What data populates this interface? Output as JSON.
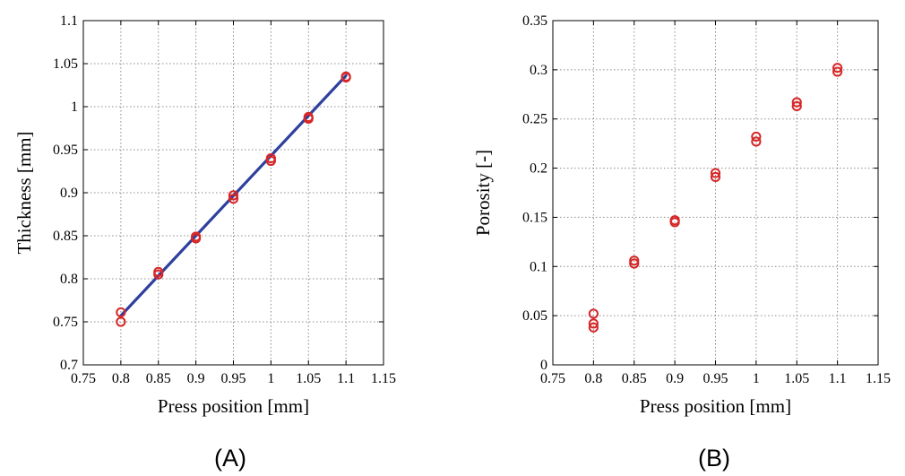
{
  "chart_data": [
    {
      "type": "scatter",
      "panel_label": "(A)",
      "title": "",
      "xlabel": "Press position [mm]",
      "ylabel": "Thickness [mm]",
      "xlim": [
        0.75,
        1.15
      ],
      "ylim": [
        0.7,
        1.1
      ],
      "xticks": [
        "0.75",
        "0.8",
        "0.85",
        "0.9",
        "0.95",
        "1",
        "1.05",
        "1.1",
        "1.15"
      ],
      "yticks": [
        "0.7",
        "0.75",
        "0.8",
        "0.85",
        "0.9",
        "0.95",
        "1",
        "1.05",
        "1.1"
      ],
      "grid": true,
      "series": [
        {
          "marker": "circle",
          "color": "#d62728",
          "points": [
            [
              0.8,
              0.761
            ],
            [
              0.8,
              0.75
            ],
            [
              0.85,
              0.808
            ],
            [
              0.85,
              0.805
            ],
            [
              0.9,
              0.849
            ],
            [
              0.9,
              0.847
            ],
            [
              0.95,
              0.897
            ],
            [
              0.95,
              0.893
            ],
            [
              1.0,
              0.94
            ],
            [
              1.0,
              0.937
            ],
            [
              1.05,
              0.988
            ],
            [
              1.05,
              0.986
            ],
            [
              1.1,
              1.035
            ],
            [
              1.1,
              1.034
            ]
          ]
        }
      ],
      "fit_line": {
        "color": "#2e3f9e",
        "from": [
          0.8,
          0.757
        ],
        "to": [
          1.1,
          1.036
        ]
      }
    },
    {
      "type": "scatter",
      "panel_label": "(B)",
      "title": "",
      "xlabel": "Press position [mm]",
      "ylabel": "Porosity [-]",
      "xlim": [
        0.75,
        1.15
      ],
      "ylim": [
        0,
        0.35
      ],
      "xticks": [
        "0.75",
        "0.8",
        "0.85",
        "0.9",
        "0.95",
        "1",
        "1.05",
        "1.1",
        "1.15"
      ],
      "yticks": [
        "0",
        "0.05",
        "0.1",
        "0.15",
        "0.2",
        "0.25",
        "0.3",
        "0.35"
      ],
      "grid": true,
      "series": [
        {
          "marker": "circle",
          "color": "#d62728",
          "points": [
            [
              0.8,
              0.052
            ],
            [
              0.8,
              0.042
            ],
            [
              0.8,
              0.038
            ],
            [
              0.85,
              0.106
            ],
            [
              0.85,
              0.103
            ],
            [
              0.9,
              0.147
            ],
            [
              0.9,
              0.145
            ],
            [
              0.95,
              0.195
            ],
            [
              0.95,
              0.191
            ],
            [
              1.0,
              0.232
            ],
            [
              1.0,
              0.227
            ],
            [
              1.05,
              0.267
            ],
            [
              1.05,
              0.263
            ],
            [
              1.1,
              0.302
            ],
            [
              1.1,
              0.298
            ]
          ]
        }
      ]
    }
  ]
}
